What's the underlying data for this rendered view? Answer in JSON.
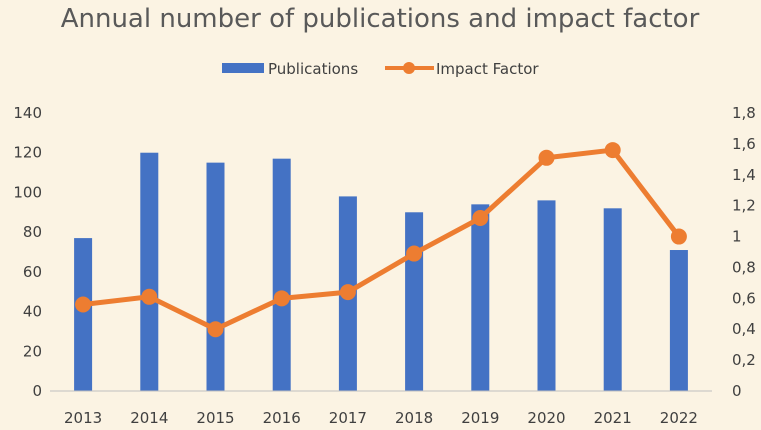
{
  "chart_data": {
    "type": "bar",
    "title": "Annual number of publications and impact factor",
    "categories": [
      "2013",
      "2014",
      "2015",
      "2016",
      "2017",
      "2018",
      "2019",
      "2020",
      "2021",
      "2022"
    ],
    "series": [
      {
        "name": "Publications",
        "type": "bar",
        "axis": "left",
        "color": "#4472c4",
        "values": [
          77,
          120,
          115,
          117,
          98,
          90,
          94,
          96,
          92,
          71
        ]
      },
      {
        "name": "Impact Factor",
        "type": "line",
        "axis": "right",
        "color": "#ed7d31",
        "values": [
          0.56,
          0.61,
          0.4,
          0.6,
          0.64,
          0.89,
          1.12,
          1.51,
          1.56,
          1.0
        ]
      }
    ],
    "y_left": {
      "min": 0,
      "max": 140,
      "ticks": [
        "0",
        "20",
        "40",
        "60",
        "80",
        "100",
        "120",
        "140"
      ]
    },
    "y_right": {
      "min": 0,
      "max": 1.8,
      "ticks": [
        "0",
        "0,2",
        "0,4",
        "0,6",
        "0,8",
        "1",
        "1,2",
        "1,4",
        "1,6",
        "1,8"
      ]
    },
    "legend_position": "top-center",
    "grid": false
  }
}
